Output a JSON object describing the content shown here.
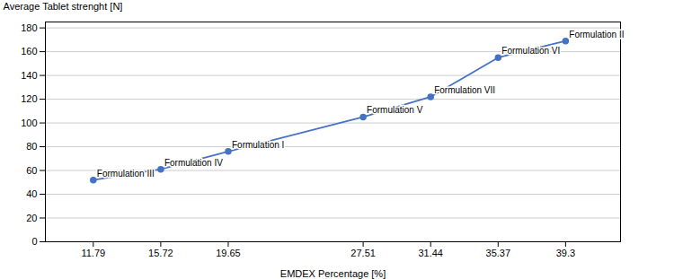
{
  "chart_data": {
    "type": "line",
    "x": [
      11.79,
      15.72,
      19.65,
      27.51,
      31.44,
      35.37,
      39.3
    ],
    "values": [
      52,
      61,
      76,
      105,
      122,
      155,
      169
    ],
    "color": "#4472C4",
    "marker": "circle",
    "annotations": [
      {
        "text": "Formulation III",
        "x": 11.79,
        "y": 52
      },
      {
        "text": "Formulation IV",
        "x": 15.72,
        "y": 61
      },
      {
        "text": "Formulation I",
        "x": 19.65,
        "y": 76
      },
      {
        "text": "Formulation V",
        "x": 27.51,
        "y": 105
      },
      {
        "text": "Formulation VII",
        "x": 31.44,
        "y": 122
      },
      {
        "text": "Formulation VI",
        "x": 35.37,
        "y": 155
      },
      {
        "text": "Formulation II",
        "x": 39.3,
        "y": 169
      }
    ],
    "x_label": "EMDEX Percentage [%]",
    "y_label": "Average Tablet strenght [N]",
    "xlim": [
      9.0,
      42.5
    ],
    "xticks": [
      11.79,
      15.72,
      19.65,
      27.51,
      31.44,
      35.37,
      39.3
    ],
    "ylim": [
      0,
      185
    ],
    "yticks": [
      0,
      20,
      40,
      60,
      80,
      100,
      120,
      140,
      160,
      180
    ],
    "grid": true
  }
}
